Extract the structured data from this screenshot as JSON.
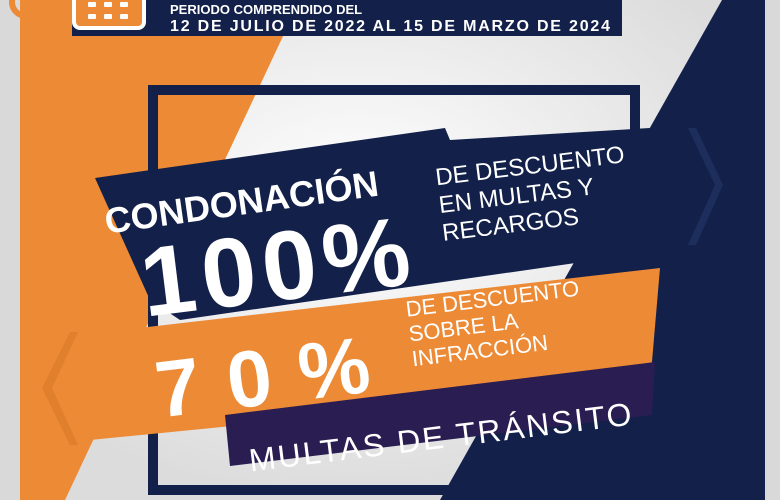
{
  "header": {
    "period_label": "PERIODO COMPRENDIDO DEL",
    "period_dates": "12 DE JULIO DE 2022  AL 15 DE MARZO DE 2024"
  },
  "offer_primary": {
    "title": "CONDONACIÓN",
    "percent": "100%",
    "description_lines": [
      "DE DESCUENTO",
      "EN MULTAS Y",
      "RECARGOS"
    ]
  },
  "offer_secondary": {
    "percent": "70%",
    "description_lines": [
      "DE DESCUENTO",
      "SOBRE LA",
      "INFRACCIÓN"
    ]
  },
  "category": "MULTAS DE TRÁNSITO",
  "icons": [
    "clock-icon",
    "calendar-icon",
    "chevrons-right-icon",
    "chevrons-left-icon"
  ],
  "colors": {
    "navy": "#13214a",
    "orange": "#ec8a35",
    "purple": "#2a1d52",
    "gray": "#e4e4e4"
  }
}
